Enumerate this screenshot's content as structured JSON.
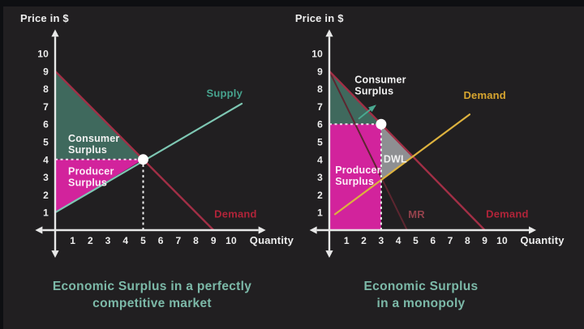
{
  "page": {
    "background": "#211f21",
    "letterbox_color": "#0e0f12"
  },
  "captions": {
    "color": "#7cb9a8",
    "left_lines": [
      "Economic Surplus in a perfectly",
      "competitive market"
    ],
    "right_lines": [
      "Economic Surplus",
      "in a monopoly"
    ]
  },
  "chart_data": [
    {
      "type": "line",
      "name": "competitive-market",
      "title": "Economic Surplus in a perfectly competitive market",
      "xlabel": "Quantity",
      "ylabel": "Price in $",
      "xlim": [
        0,
        10
      ],
      "ylim": [
        0,
        10
      ],
      "x_ticks": [
        1,
        2,
        3,
        4,
        5,
        6,
        7,
        8,
        9,
        10
      ],
      "y_ticks": [
        1,
        2,
        3,
        4,
        5,
        6,
        7,
        8,
        9,
        10
      ],
      "equilibrium": {
        "quantity": 5,
        "price": 4
      },
      "regions": [
        {
          "name": "consumer-surplus",
          "label": "Consumer Surplus",
          "points": [
            [
              0,
              9
            ],
            [
              5,
              4
            ],
            [
              0,
              4
            ]
          ],
          "fill": "#3f695d"
        },
        {
          "name": "producer-surplus",
          "label": "Producer Surplus",
          "points": [
            [
              0,
              4
            ],
            [
              5,
              4
            ],
            [
              0,
              1
            ]
          ],
          "fill": "#d2239c"
        }
      ],
      "lines": [
        {
          "name": "supply",
          "label": "Supply",
          "points": [
            [
              0,
              1
            ],
            [
              10.6,
              7.16
            ]
          ],
          "color": "#7ec7b3",
          "width": 2.2
        },
        {
          "name": "demand",
          "label": "Demand",
          "points": [
            [
              0,
              9
            ],
            [
              9,
              0
            ]
          ],
          "color": "#a22f46",
          "width": 2.4
        }
      ],
      "guides": [
        {
          "name": "equilibrium-vertical",
          "points": [
            [
              5,
              0
            ],
            [
              5,
              4
            ]
          ],
          "color": "#ededed"
        },
        {
          "name": "equilibrium-horizontal",
          "points": [
            [
              0,
              4
            ],
            [
              5,
              4
            ]
          ],
          "color": "#f3d9ea"
        }
      ],
      "markers": [
        {
          "name": "equilibrium-point",
          "at": [
            5,
            4
          ],
          "color": "#ffffff",
          "r": 6.5
        }
      ],
      "labels": [
        {
          "name": "consumer-surplus-label",
          "lines": [
            "Consumer",
            "Surplus"
          ],
          "at": [
            0.74,
            5.0
          ],
          "color": "#f2f2f2",
          "size": 12.5,
          "anchor": "start"
        },
        {
          "name": "producer-surplus-label",
          "lines": [
            "Producer",
            "Surplus"
          ],
          "at": [
            0.74,
            3.15
          ],
          "color": "#fdeef8",
          "size": 12.5,
          "anchor": "start"
        },
        {
          "name": "supply-label",
          "lines": [
            "Supply"
          ],
          "at": [
            9.62,
            7.55
          ],
          "color": "#46a38e",
          "size": 13,
          "anchor": "middle"
        },
        {
          "name": "demand-label",
          "lines": [
            "Demand"
          ],
          "at": [
            10.25,
            0.72
          ],
          "color": "#b02439",
          "size": 13,
          "anchor": "middle"
        }
      ]
    },
    {
      "type": "line",
      "name": "monopoly",
      "title": "Economic Surplus in a monopoly",
      "xlabel": "Quantity",
      "ylabel": "Price in $",
      "xlim": [
        0,
        10
      ],
      "ylim": [
        0,
        10
      ],
      "x_ticks": [
        1,
        2,
        3,
        4,
        5,
        6,
        7,
        8,
        9,
        10
      ],
      "y_ticks": [
        1,
        2,
        3,
        4,
        5,
        6,
        7,
        8,
        9,
        10
      ],
      "equilibrium": {
        "quantity": 3,
        "price": 6
      },
      "regions": [
        {
          "name": "consumer-surplus",
          "label": "Consumer Surplus",
          "points": [
            [
              0,
              9
            ],
            [
              3,
              6
            ],
            [
              0,
              6
            ]
          ],
          "fill": "#3f695d"
        },
        {
          "name": "deadweight-loss",
          "label": "DWL",
          "points": [
            [
              3,
              6
            ],
            [
              4.82,
              4.18
            ],
            [
              3,
              2.87
            ]
          ],
          "fill": "#8e8f92"
        },
        {
          "name": "producer-surplus",
          "label": "Producer Surplus",
          "points": [
            [
              0,
              6
            ],
            [
              3,
              6
            ],
            [
              3,
              0
            ],
            [
              0,
              0
            ]
          ],
          "fill": "#d2239c"
        }
      ],
      "lines": [
        {
          "name": "marginal-revenue",
          "label": "MR",
          "points": [
            [
              0,
              9
            ],
            [
              4.5,
              0
            ]
          ],
          "color": "#5d2630",
          "width": 2
        },
        {
          "name": "demand",
          "label": "Demand",
          "points": [
            [
              0,
              9
            ],
            [
              9,
              0
            ]
          ],
          "color": "#a22f46",
          "width": 2.4
        },
        {
          "name": "marginal-cost",
          "label": "Demand",
          "points": [
            [
              0.33,
              0.9
            ],
            [
              8.12,
              6.55
            ]
          ],
          "color": "#ddb23e",
          "width": 2.2
        }
      ],
      "guides": [
        {
          "name": "monopoly-vertical",
          "points": [
            [
              3,
              0
            ],
            [
              3,
              6
            ]
          ],
          "color": "#ededed"
        },
        {
          "name": "monopoly-horizontal",
          "points": [
            [
              0,
              6
            ],
            [
              3,
              6
            ]
          ],
          "color": "#f3d9ea"
        }
      ],
      "markers": [
        {
          "name": "monopoly-price-point",
          "at": [
            3,
            6
          ],
          "color": "#ffffff",
          "r": 6.5
        }
      ],
      "annotation_arrow": {
        "from": [
          1.72,
          6.32
        ],
        "to": [
          2.62,
          7.02
        ],
        "color": "#4aa890"
      },
      "labels": [
        {
          "name": "consumer-surplus-label",
          "lines": [
            "Consumer",
            "Surplus"
          ],
          "at": [
            1.47,
            8.32
          ],
          "color": "#f2f2f2",
          "size": 12.5,
          "anchor": "start"
        },
        {
          "name": "producer-surplus-label",
          "lines": [
            "Producer",
            "Surplus"
          ],
          "at": [
            0.34,
            3.2
          ],
          "color": "#fdeef8",
          "size": 12.5,
          "anchor": "start"
        },
        {
          "name": "dwl-label",
          "lines": [
            "DWL"
          ],
          "at": [
            3.82,
            3.82
          ],
          "color": "#f2f2f2",
          "size": 12.5,
          "anchor": "middle"
        },
        {
          "name": "demand-label-yellow",
          "lines": [
            "Demand"
          ],
          "at": [
            9.0,
            7.42
          ],
          "color": "#d7a52f",
          "size": 13,
          "anchor": "middle"
        },
        {
          "name": "mr-label",
          "lines": [
            "MR"
          ],
          "at": [
            5.05,
            0.68
          ],
          "color": "#94424c",
          "size": 13,
          "anchor": "middle"
        },
        {
          "name": "demand-label",
          "lines": [
            "Demand"
          ],
          "at": [
            10.3,
            0.72
          ],
          "color": "#b02439",
          "size": 13,
          "anchor": "middle"
        }
      ]
    }
  ]
}
